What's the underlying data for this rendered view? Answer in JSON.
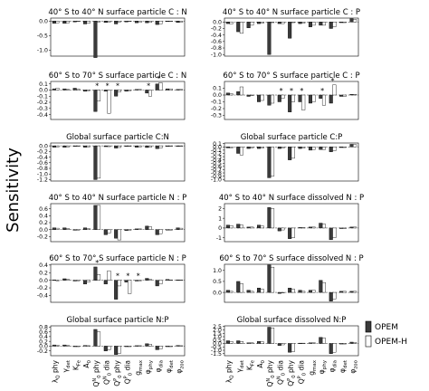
{
  "figure": {
    "ylabel": "Sensitivity",
    "legend": [
      "OPEM",
      "OPEM-H"
    ],
    "colors": {
      "opem": "#3a3a3a",
      "opemh": "#ffffff",
      "stroke": "#000000"
    },
    "xticks": [
      {
        "base": "λ",
        "sub": "Q",
        "rest": " phy"
      },
      {
        "base": "γ",
        "sub": "det",
        "rest": ""
      },
      {
        "base": "K",
        "sub": "Fe",
        "rest": ""
      },
      {
        "base": "A",
        "sub": "0",
        "rest": ""
      },
      {
        "base": "Q",
        "sub": "0",
        "sup": "N",
        "rest": " phy"
      },
      {
        "base": "Q",
        "sub": "0",
        "sup": "N",
        "rest": " dia"
      },
      {
        "base": "Q",
        "sub": "0",
        "sup": "P",
        "rest": " phy"
      },
      {
        "base": "Q",
        "sub": "0",
        "sup": "P",
        "rest": " dia"
      },
      {
        "base": "g",
        "sub": "max",
        "rest": ""
      },
      {
        "base": "φ",
        "sub": "phy",
        "rest": ""
      },
      {
        "base": "φ",
        "sub": "dia",
        "rest": ""
      },
      {
        "base": "φ",
        "sub": "det",
        "rest": ""
      },
      {
        "base": "φ",
        "sub": "zoo",
        "rest": ""
      }
    ]
  },
  "chart_data": [
    {
      "type": "bar",
      "title": "40° S to 40° N surface particle C : N",
      "ylim": [
        -1.2,
        0.1
      ],
      "ticks": [
        "0.0",
        "-0.5",
        "-1.0"
      ],
      "tickvals": [
        0,
        -0.5,
        -1.0
      ],
      "series": [
        {
          "name": "OPEM",
          "values": [
            -0.08,
            -0.08,
            -0.03,
            -0.1,
            -1.25,
            -0.05,
            -0.1,
            -0.03,
            -0.06,
            -0.06,
            -0.12,
            -0.02,
            -0.05
          ]
        },
        {
          "name": "OPEM-H",
          "values": [
            -0.06,
            -0.06,
            -0.02,
            -0.08,
            -0.03,
            -0.04,
            -0.03,
            -0.02,
            -0.05,
            -0.05,
            -0.1,
            -0.02,
            -0.04
          ]
        }
      ]
    },
    {
      "type": "bar",
      "title": "40° S to 40° N surface particle C : P",
      "ylim": [
        -1.05,
        0.12
      ],
      "ticks": [
        "0.0",
        "-0.2",
        "-0.4",
        "-0.6",
        "-0.8",
        "-1.0"
      ],
      "tickvals": [
        0,
        -0.2,
        -0.4,
        -0.6,
        -0.8,
        -1.0
      ],
      "series": [
        {
          "name": "OPEM",
          "values": [
            -0.05,
            -0.3,
            -0.18,
            -0.05,
            -1.0,
            -0.05,
            -0.5,
            -0.05,
            -0.15,
            -0.1,
            -0.2,
            -0.02,
            0.1
          ]
        },
        {
          "name": "OPEM-H",
          "values": [
            -0.06,
            -0.35,
            -0.1,
            -0.04,
            -0.02,
            -0.05,
            -0.02,
            -0.04,
            -0.1,
            -0.1,
            -0.15,
            -0.02,
            0.08
          ]
        }
      ]
    },
    {
      "type": "bar",
      "title": "60° S to 70° S surface particle C : N",
      "ylim": [
        -0.48,
        0.14
      ],
      "ticks": [
        "0.1",
        "0.0",
        "-0.1",
        "-0.2",
        "-0.3",
        "-0.4"
      ],
      "tickvals": [
        0.1,
        0,
        -0.1,
        -0.2,
        -0.3,
        -0.4
      ],
      "series": [
        {
          "name": "OPEM",
          "values": [
            0.02,
            0.02,
            0.03,
            -0.02,
            -0.35,
            -0.02,
            -0.1,
            -0.02,
            0.01,
            -0.05,
            0.1,
            0.02,
            0.01
          ]
        },
        {
          "name": "OPEM-H",
          "values": [
            0.03,
            0.01,
            0.02,
            -0.01,
            -0.18,
            -0.38,
            -0.03,
            -0.01,
            0.01,
            -0.1,
            0.12,
            0.02,
            0.01
          ]
        }
      ],
      "markers": [
        "*  after Q0N phy",
        "*",
        "*",
        "*",
        "*"
      ]
    },
    {
      "type": "bar",
      "title": "60° S to 70° S surface particle C : P",
      "ylim": [
        -0.36,
        0.2
      ],
      "ticks": [
        "0.1",
        "0.0",
        "-0.1",
        "-0.2",
        "-0.3"
      ],
      "tickvals": [
        0.1,
        0,
        -0.1,
        -0.2,
        -0.3
      ],
      "series": [
        {
          "name": "OPEM",
          "values": [
            0.03,
            0.05,
            -0.02,
            -0.1,
            -0.15,
            -0.1,
            -0.25,
            -0.1,
            -0.12,
            -0.05,
            -0.12,
            -0.02,
            0.01
          ]
        },
        {
          "name": "OPEM-H",
          "values": [
            0.02,
            0.12,
            -0.01,
            -0.08,
            -0.12,
            -0.05,
            -0.1,
            -0.22,
            -0.1,
            -0.15,
            0.15,
            -0.02,
            0.01
          ]
        }
      ],
      "markers": [
        "*",
        "*",
        "*",
        "*",
        "*"
      ]
    },
    {
      "type": "bar",
      "title": "Global surface particle C:N",
      "ylim": [
        -1.25,
        0.1
      ],
      "ticks": [
        "0.0",
        "-0.2",
        "-0.4",
        "-0.6",
        "-0.8",
        "-1.0",
        "-1.2"
      ],
      "tickvals": [
        0,
        -0.2,
        -0.4,
        -0.6,
        -0.8,
        -1.0,
        -1.2
      ],
      "series": [
        {
          "name": "OPEM",
          "values": [
            -0.05,
            -0.05,
            -0.02,
            -0.05,
            -1.2,
            -0.03,
            -0.08,
            -0.02,
            -0.05,
            -0.06,
            -0.1,
            -0.02,
            -0.02
          ]
        },
        {
          "name": "OPEM-H",
          "values": [
            -0.04,
            -0.04,
            -0.02,
            -0.04,
            -1.15,
            -0.03,
            -0.06,
            -0.02,
            -0.04,
            -0.05,
            -0.08,
            -0.02,
            -0.02
          ]
        }
      ]
    },
    {
      "type": "bar",
      "title": "Global surface particle C:P",
      "ylim": [
        -1.05,
        0.12
      ],
      "ticks": [
        "0.1",
        "0.0",
        "-0.1",
        "-0.2",
        "-0.3",
        "-0.4",
        "-0.5",
        "-0.6",
        "-0.7",
        "-0.8",
        "-0.9",
        "-1.0"
      ],
      "tickvals": [
        0.1,
        0,
        -0.1,
        -0.2,
        -0.3,
        -0.4,
        -0.5,
        -0.6,
        -0.7,
        -0.8,
        -0.9,
        -1.0
      ],
      "series": [
        {
          "name": "OPEM",
          "values": [
            -0.03,
            -0.2,
            -0.05,
            -0.05,
            -0.95,
            -0.05,
            -0.4,
            -0.05,
            -0.1,
            -0.08,
            -0.15,
            -0.02,
            0.08
          ]
        },
        {
          "name": "OPEM-H",
          "values": [
            -0.03,
            -0.25,
            -0.03,
            -0.04,
            -0.9,
            -0.04,
            -0.35,
            -0.04,
            -0.08,
            -0.08,
            -0.12,
            -0.02,
            0.07
          ]
        }
      ]
    },
    {
      "type": "bar",
      "title": "40° S to 40° N surface particle N : P",
      "ylim": [
        -0.35,
        0.75
      ],
      "ticks": [
        "0.6",
        "0.4",
        "0.2",
        "0.0",
        "-0.2"
      ],
      "tickvals": [
        0.6,
        0.4,
        0.2,
        0,
        -0.2
      ],
      "series": [
        {
          "name": "OPEM",
          "values": [
            0.05,
            0.05,
            -0.02,
            0.05,
            0.7,
            -0.15,
            -0.25,
            -0.03,
            0.02,
            0.1,
            -0.15,
            0.0,
            0.05
          ]
        },
        {
          "name": "OPEM-H",
          "values": [
            0.04,
            0.03,
            -0.01,
            0.03,
            0.7,
            -0.1,
            -0.3,
            -0.02,
            0.02,
            0.08,
            -0.12,
            0.0,
            0.04
          ]
        }
      ]
    },
    {
      "type": "bar",
      "title": "40° S to 40° N surface dissolved N : P",
      "ylim": [
        -1.4,
        2.5
      ],
      "ticks": [
        "2",
        "1",
        "0",
        "-1"
      ],
      "tickvals": [
        2,
        1,
        0,
        -1
      ],
      "series": [
        {
          "name": "OPEM",
          "values": [
            0.3,
            0.4,
            0.1,
            0.3,
            2.1,
            -0.3,
            -1.1,
            0.05,
            0.1,
            0.5,
            -1.2,
            0.0,
            0.1
          ]
        },
        {
          "name": "OPEM-H",
          "values": [
            0.25,
            0.3,
            0.1,
            0.2,
            2.0,
            -0.2,
            -1.0,
            0.05,
            0.1,
            0.4,
            -1.0,
            0.0,
            0.1
          ]
        }
      ]
    },
    {
      "type": "bar",
      "title": "60° S to 70° S surface particle N : P",
      "ylim": [
        -0.58,
        0.42
      ],
      "ticks": [
        "0.4",
        "0.2",
        "0.0",
        "-0.2",
        "-0.4"
      ],
      "tickvals": [
        0.4,
        0.2,
        0,
        -0.2,
        -0.4
      ],
      "series": [
        {
          "name": "OPEM",
          "values": [
            0.01,
            0.04,
            -0.02,
            -0.1,
            0.35,
            -0.1,
            -0.5,
            -0.05,
            -0.02,
            0.05,
            -0.15,
            0.02,
            0.01
          ]
        },
        {
          "name": "OPEM-H",
          "values": [
            0.0,
            0.02,
            -0.01,
            -0.05,
            0.15,
            0.25,
            -0.15,
            -0.35,
            -0.01,
            0.02,
            -0.1,
            0.01,
            0.01
          ]
        }
      ],
      "markers": [
        "*",
        "*",
        "*",
        "*"
      ]
    },
    {
      "type": "bar",
      "title": "60° S to 70° S surface dissolved N : P",
      "ylim": [
        -0.45,
        1.28
      ],
      "ticks": [
        "1.0",
        "0.5",
        "0.0"
      ],
      "tickvals": [
        1.0,
        0.5,
        0
      ],
      "series": [
        {
          "name": "OPEM",
          "values": [
            0.1,
            0.5,
            0.1,
            0.2,
            1.25,
            -0.05,
            0.2,
            0.1,
            0.1,
            0.55,
            -0.4,
            0.05,
            0.05
          ]
        },
        {
          "name": "OPEM-H",
          "values": [
            0.05,
            0.4,
            0.05,
            0.15,
            1.15,
            0.0,
            0.15,
            0.05,
            0.1,
            0.45,
            -0.3,
            0.05,
            0.05
          ]
        }
      ]
    },
    {
      "type": "bar",
      "title": "Global surface particle N:P",
      "ylim": [
        -0.4,
        0.85
      ],
      "ticks": [
        "0.8",
        "0.6",
        "0.4",
        "0.2",
        "0.0",
        "-0.2"
      ],
      "tickvals": [
        0.8,
        0.6,
        0.4,
        0.2,
        0,
        -0.2
      ],
      "series": [
        {
          "name": "OPEM",
          "values": [
            0.05,
            0.05,
            -0.02,
            0.03,
            0.7,
            -0.2,
            -0.35,
            -0.02,
            0.02,
            0.1,
            -0.15,
            0.0,
            0.03
          ]
        },
        {
          "name": "OPEM-H",
          "values": [
            0.04,
            0.03,
            -0.01,
            0.02,
            0.6,
            -0.15,
            -0.3,
            -0.02,
            0.02,
            0.08,
            -0.12,
            0.0,
            0.02
          ]
        }
      ]
    },
    {
      "type": "bar",
      "title": "Global surface dissolved N:P",
      "ylim": [
        -1.8,
        2.6
      ],
      "ticks": [
        "2.5",
        "2.0",
        "1.5",
        "1.0",
        "0.5",
        "0.0",
        "-0.5",
        "-1.0",
        "-1.5"
      ],
      "tickvals": [
        2.5,
        2.0,
        1.5,
        1.0,
        0.5,
        0,
        -0.5,
        -1.0,
        -1.5
      ],
      "series": [
        {
          "name": "OPEM",
          "values": [
            0.4,
            0.4,
            0.1,
            0.3,
            2.4,
            -0.3,
            -1.3,
            0.05,
            0.1,
            0.9,
            -1.5,
            0.0,
            0.2
          ]
        },
        {
          "name": "OPEM-H",
          "values": [
            0.3,
            0.3,
            0.1,
            0.25,
            2.3,
            -0.2,
            -1.2,
            0.05,
            0.1,
            0.8,
            -1.3,
            0.0,
            0.15
          ]
        }
      ]
    }
  ]
}
